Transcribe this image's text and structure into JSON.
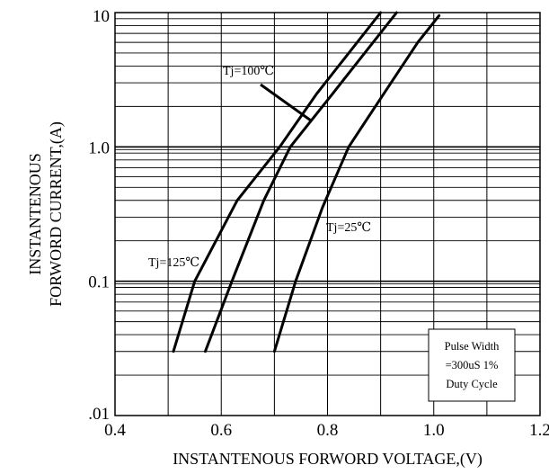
{
  "chart_data": {
    "type": "line",
    "title": "",
    "xlabel": "INSTANTENOUS FORWORD VOLTAGE,(V)",
    "ylabel_lines": [
      "INSTANTENOUS",
      "FORWORD CURRENT,(A)"
    ],
    "xlim": [
      0.4,
      1.2
    ],
    "ylim": [
      0.01,
      10
    ],
    "y_scale": "log",
    "grid": true,
    "x_ticks": [
      0.4,
      0.6,
      0.8,
      1.0,
      1.2
    ],
    "x_tick_labels": [
      "0.4",
      "0.6",
      "0.8",
      "1.0",
      "1.2"
    ],
    "y_ticks": [
      0.01,
      0.1,
      1,
      10
    ],
    "y_tick_labels": [
      ".01",
      "0.1",
      "1.0",
      "10"
    ],
    "series": [
      {
        "name": "Tj=125℃",
        "x": [
          0.51,
          0.55,
          0.63,
          0.71,
          0.78,
          0.9
        ],
        "y": [
          0.03,
          0.1,
          0.4,
          1.0,
          2.5,
          10
        ]
      },
      {
        "name": "Tj=100℃",
        "x": [
          0.57,
          0.62,
          0.68,
          0.73,
          0.81,
          0.93
        ],
        "y": [
          0.03,
          0.1,
          0.4,
          1.0,
          2.5,
          10
        ]
      },
      {
        "name": "Tj=25℃",
        "x": [
          0.7,
          0.74,
          0.79,
          0.84,
          0.89,
          0.97,
          1.01
        ],
        "y": [
          0.03,
          0.1,
          0.35,
          1.0,
          2.0,
          6.0,
          9.5
        ]
      }
    ],
    "annotations": [
      {
        "text": "Tj=100℃",
        "target_series": "Tj=100℃",
        "arrow": true
      },
      {
        "text": "Tj=25℃",
        "target_series": "Tj=25℃"
      },
      {
        "text": "Tj=125℃",
        "target_series": "Tj=125℃"
      }
    ],
    "note_lines": [
      "Pulse Width",
      "=300uS 1%",
      "Duty Cycle"
    ],
    "colors": {
      "line": "#000000",
      "grid": "#000000",
      "background": "#ffffff"
    }
  }
}
